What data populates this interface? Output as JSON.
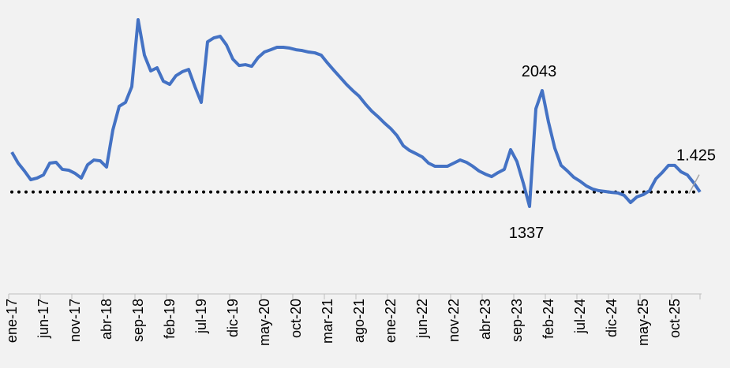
{
  "chart_data": {
    "type": "line",
    "categories": [
      "ene-17",
      null,
      null,
      null,
      null,
      "jun-17",
      null,
      null,
      null,
      null,
      "nov-17",
      null,
      null,
      null,
      null,
      "abr-18",
      null,
      null,
      null,
      null,
      "sep-18",
      null,
      null,
      null,
      null,
      "feb-19",
      null,
      null,
      null,
      null,
      "jul-19",
      null,
      null,
      null,
      null,
      "dic-19",
      null,
      null,
      null,
      null,
      "may-20",
      null,
      null,
      null,
      null,
      "oct-20",
      null,
      null,
      null,
      null,
      "mar-21",
      null,
      null,
      null,
      null,
      "ago-21",
      null,
      null,
      null,
      null,
      "ene-22",
      null,
      null,
      null,
      null,
      "jun-22",
      null,
      null,
      null,
      null,
      "nov-22",
      null,
      null,
      null,
      null,
      "abr-23",
      null,
      null,
      null,
      null,
      "sep-23",
      null,
      null,
      null,
      null,
      "feb-24",
      null,
      null,
      null,
      null,
      "jul-24",
      null,
      null,
      null,
      null,
      "dic-24",
      null,
      null,
      null,
      null,
      "may-25",
      null,
      null,
      null,
      null,
      "oct-25",
      null,
      null,
      null,
      null
    ],
    "values": [
      1668,
      1601,
      1553,
      1500,
      1510,
      1529,
      1601,
      1606,
      1563,
      1558,
      1539,
      1510,
      1591,
      1620,
      1615,
      1577,
      1803,
      1947,
      1971,
      2067,
      2475,
      2259,
      2163,
      2182,
      2100,
      2081,
      2134,
      2158,
      2172,
      2067,
      1971,
      2340,
      2364,
      2374,
      2321,
      2235,
      2196,
      2201,
      2191,
      2244,
      2278,
      2292,
      2307,
      2307,
      2302,
      2292,
      2287,
      2278,
      2273,
      2259,
      2211,
      2167,
      2124,
      2081,
      2043,
      2009,
      1961,
      1918,
      1884,
      1846,
      1812,
      1769,
      1707,
      1678,
      1659,
      1639,
      1601,
      1582,
      1582,
      1582,
      1601,
      1620,
      1606,
      1582,
      1553,
      1534,
      1519,
      1543,
      1563,
      1683,
      1611,
      1481,
      1337,
      1932,
      2043,
      1851,
      1692,
      1587,
      1553,
      1515,
      1491,
      1462,
      1443,
      1433,
      1428,
      1423,
      1419,
      1404,
      1361,
      1395,
      1409,
      1433,
      1505,
      1543,
      1587,
      1587,
      1548,
      1529,
      1481,
      1425
    ],
    "value_labels": [
      null,
      null,
      null,
      null,
      null,
      null,
      null,
      null,
      null,
      null,
      null,
      null,
      null,
      null,
      null,
      null,
      null,
      null,
      null,
      null,
      null,
      null,
      null,
      null,
      null,
      null,
      null,
      null,
      null,
      null,
      null,
      null,
      null,
      null,
      null,
      null,
      null,
      null,
      null,
      null,
      null,
      null,
      null,
      null,
      null,
      null,
      null,
      null,
      null,
      null,
      null,
      null,
      null,
      null,
      null,
      null,
      null,
      null,
      null,
      null,
      null,
      null,
      null,
      null,
      null,
      null,
      null,
      null,
      null,
      null,
      null,
      null,
      null,
      null,
      null,
      null,
      null,
      null,
      null,
      null,
      null,
      null,
      "1337",
      null,
      "2043",
      null,
      null,
      null,
      null,
      null,
      null,
      null,
      null,
      null,
      null,
      null,
      null,
      null,
      null,
      null,
      null,
      null,
      null,
      null,
      null,
      null,
      null,
      null,
      null,
      "1.425"
    ],
    "color": "#4472c4",
    "ylim": [
      804,
      2595
    ],
    "reference_line": {
      "value": 1425,
      "style": "dotted",
      "color": "#000000"
    },
    "grid": false
  }
}
